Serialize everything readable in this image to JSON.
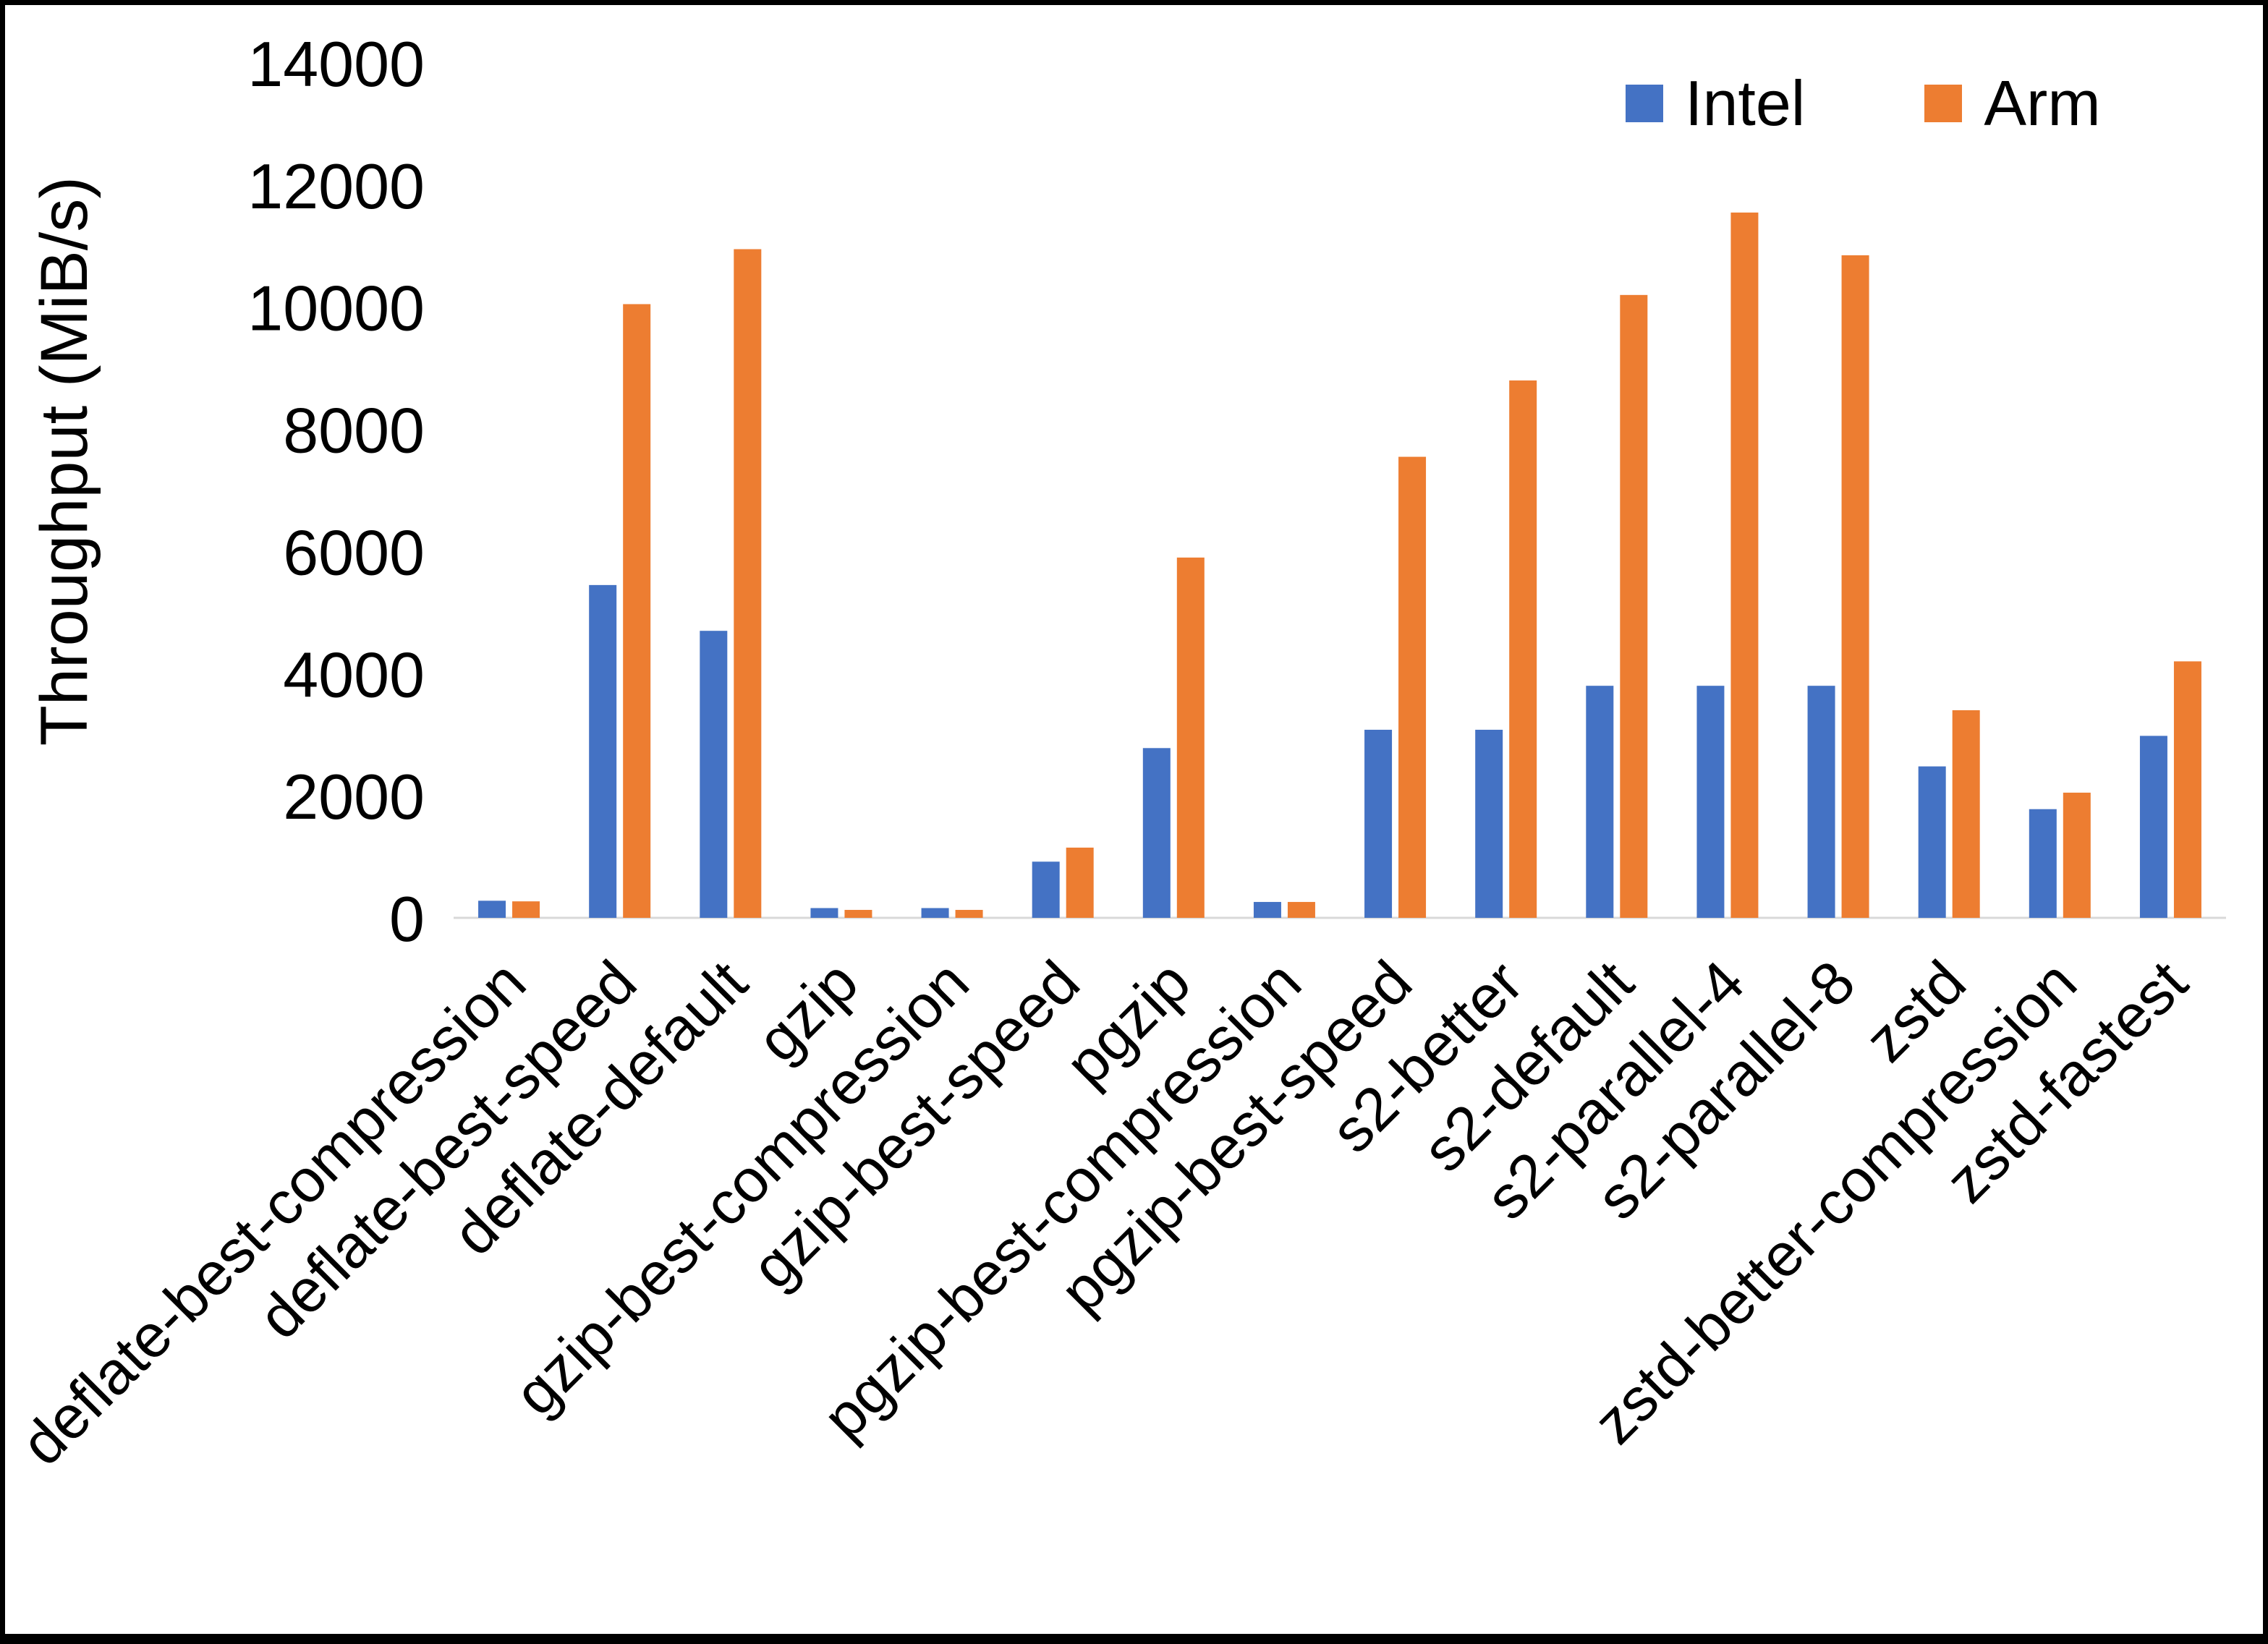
{
  "chart_data": {
    "type": "bar",
    "title": "",
    "xlabel": "",
    "ylabel": "Throughput (MiB/s)",
    "ylim": [
      0,
      14000
    ],
    "ytick_step": 2000,
    "grid": false,
    "legend_position": "top-right",
    "categories": [
      "deflate-best-compression",
      "deflate-best-speed",
      "deflate-default",
      "gzip",
      "gzip-best-compression",
      "gzip-best-speed",
      "pgzip",
      "pgzip-best-compression",
      "pgzip-best-speed",
      "s2-better",
      "s2-default",
      "s2-parallel-4",
      "s2-parallel-8",
      "zstd",
      "zstd-better-compression",
      "zstd-fastest"
    ],
    "series": [
      {
        "name": "Intel",
        "color": "#4472C4",
        "values": [
          280,
          5450,
          4700,
          160,
          160,
          920,
          2780,
          260,
          3080,
          3080,
          3800,
          3800,
          3800,
          2480,
          1780,
          2980
        ]
      },
      {
        "name": "Arm",
        "color": "#ED7D31",
        "values": [
          270,
          10050,
          10950,
          130,
          130,
          1150,
          5900,
          260,
          7550,
          8800,
          10200,
          11550,
          10850,
          3400,
          2050,
          4200
        ]
      }
    ],
    "axis_line_color": "#D9D9D9",
    "text_color": "#000000"
  }
}
